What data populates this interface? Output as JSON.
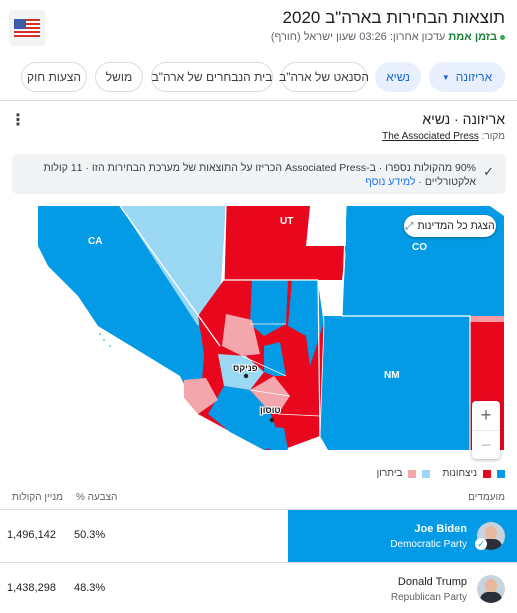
{
  "header": {
    "title": "תוצאות הבחירות בארה\"ב 2020",
    "live_label": "בזמן אמת",
    "updated": "עדכון אחרון: 03:26 שעון ישראל (חורף)",
    "flag_icon": "us-flag-icon"
  },
  "tabs": [
    {
      "label": "אריזונה",
      "active": true
    },
    {
      "label": "נשיא",
      "active": true
    },
    {
      "label": "הסנאט של ארה\"ב",
      "active": false
    },
    {
      "label": "בית הנבחרים של ארה\"ב",
      "active": false
    },
    {
      "label": "מושל",
      "active": false
    },
    {
      "label": "הצעות חוק",
      "active": false
    }
  ],
  "result": {
    "location_title": "אריזונה · נשיא",
    "source_prefix": "מקור:",
    "source_name": "The Associated Press",
    "notice": "90% מהקולות נספרו · ב-Associated Press הכריזו על התוצאות של מערכת הבחירות הזו · 11 קולות אלקטורליים · ",
    "notice_link": "למידע נוסף"
  },
  "map": {
    "expand_label": "הצגת כל המדינות",
    "state_labels": {
      "ca": "CA",
      "ut": "UT",
      "co": "CO",
      "nm": "NM"
    },
    "city_labels": {
      "phoenix": "פניקס",
      "tucson": "טוסון"
    },
    "colors": {
      "dem": "#039be5",
      "rep": "#e8071d",
      "dem_light": "#9ad8f3",
      "rep_light": "#f4a6ad",
      "neutral": "#ffffff"
    },
    "zoom_in": "+",
    "zoom_out": "−"
  },
  "legend": {
    "lead_label": "ניצחונות",
    "trail_label": "ביתרון"
  },
  "table": {
    "col_candidate": "מועמדים",
    "col_percent": "% הצבעה",
    "col_votes": "מניין הקולות",
    "rows": [
      {
        "name": "Joe Biden",
        "party": "Democratic Party",
        "percent": "50.3%",
        "votes": "1,496,142",
        "winner": true
      },
      {
        "name": "Donald Trump",
        "party": "Republican Party",
        "percent": "48.3%",
        "votes": "1,438,298",
        "winner": false
      }
    ]
  }
}
